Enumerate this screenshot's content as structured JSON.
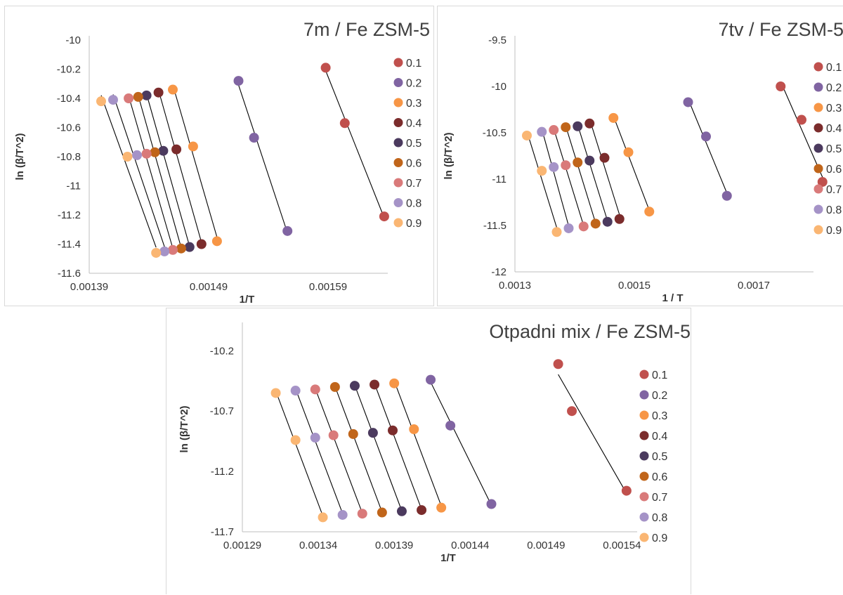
{
  "chart_data": [
    {
      "type": "scatter",
      "title": "7m / Fe ZSM-5",
      "xlabel": "1/T",
      "ylabel": "ln (β/T^2)",
      "xlim": [
        0.00139,
        0.00164
      ],
      "ylim": [
        -11.6,
        -10.0
      ],
      "xticks": [
        "0.00139",
        "0.00149",
        "0.00159"
      ],
      "yticks": [
        "-10",
        "-10.2",
        "-10.4",
        "-10.6",
        "-10.8",
        "-11",
        "-11.2",
        "-11.4",
        "-11.6"
      ],
      "grid": false,
      "legend": "right",
      "series": [
        {
          "name": "0.1",
          "color": "#c0504d",
          "x": [
            0.001588,
            0.001604,
            0.001637
          ],
          "y": [
            -10.19,
            -10.57,
            -11.21
          ]
        },
        {
          "name": "0.2",
          "color": "#8064a2",
          "x": [
            0.001515,
            0.001528,
            0.001556
          ],
          "y": [
            -10.28,
            -10.67,
            -11.31
          ]
        },
        {
          "name": "0.3",
          "color": "#f79646",
          "x": [
            0.00146,
            0.001477,
            0.001497
          ],
          "y": [
            -10.34,
            -10.73,
            -11.38
          ]
        },
        {
          "name": "0.4",
          "color": "#7b2c2c",
          "x": [
            0.001448,
            0.001463,
            0.001484
          ],
          "y": [
            -10.36,
            -10.75,
            -11.4
          ]
        },
        {
          "name": "0.5",
          "color": "#4b3a5e",
          "x": [
            0.001438,
            0.001452,
            0.001474
          ],
          "y": [
            -10.38,
            -10.76,
            -11.42
          ]
        },
        {
          "name": "0.6",
          "color": "#c0651a",
          "x": [
            0.001431,
            0.001445,
            0.001467
          ],
          "y": [
            -10.39,
            -10.77,
            -11.43
          ]
        },
        {
          "name": "0.7",
          "color": "#d97a7a",
          "x": [
            0.001423,
            0.001438,
            0.00146
          ],
          "y": [
            -10.4,
            -10.78,
            -11.44
          ]
        },
        {
          "name": "0.8",
          "color": "#a593c7",
          "x": [
            0.00141,
            0.00143,
            0.001453
          ],
          "y": [
            -10.41,
            -10.79,
            -11.45
          ]
        },
        {
          "name": "0.9",
          "color": "#fab673",
          "x": [
            0.0014,
            0.001422,
            0.001446
          ],
          "y": [
            -10.42,
            -10.8,
            -11.46
          ]
        }
      ]
    },
    {
      "type": "scatter",
      "title": "7tv / Fe ZSM-5",
      "xlabel": "1 / T",
      "ylabel": "ln (β/T^2)",
      "xlim": [
        0.0013,
        0.0018
      ],
      "ylim": [
        -12.0,
        -9.5
      ],
      "xticks": [
        "0.0013",
        "0.0015",
        "0.0017"
      ],
      "yticks": [
        "-9.5",
        "-10",
        "-10.5",
        "-11",
        "-11.5",
        "-12"
      ],
      "grid": false,
      "legend": "right",
      "series": [
        {
          "name": "0.1",
          "color": "#c0504d",
          "x": [
            0.001745,
            0.00178,
            0.001815
          ],
          "y": [
            -10.0,
            -10.36,
            -11.03
          ]
        },
        {
          "name": "0.2",
          "color": "#8064a2",
          "x": [
            0.00159,
            0.00162,
            0.001655
          ],
          "y": [
            -10.17,
            -10.54,
            -11.18
          ]
        },
        {
          "name": "0.3",
          "color": "#f79646",
          "x": [
            0.001465,
            0.00149,
            0.001525
          ],
          "y": [
            -10.34,
            -10.71,
            -11.35
          ]
        },
        {
          "name": "0.4",
          "color": "#7b2c2c",
          "x": [
            0.001425,
            0.00145,
            0.001475
          ],
          "y": [
            -10.4,
            -10.77,
            -11.43
          ]
        },
        {
          "name": "0.5",
          "color": "#4b3a5e",
          "x": [
            0.001405,
            0.001425,
            0.001455
          ],
          "y": [
            -10.43,
            -10.8,
            -11.46
          ]
        },
        {
          "name": "0.6",
          "color": "#c0651a",
          "x": [
            0.001385,
            0.001405,
            0.001435
          ],
          "y": [
            -10.44,
            -10.82,
            -11.48
          ]
        },
        {
          "name": "0.7",
          "color": "#d97a7a",
          "x": [
            0.001365,
            0.001385,
            0.001415
          ],
          "y": [
            -10.47,
            -10.85,
            -11.51
          ]
        },
        {
          "name": "0.8",
          "color": "#a593c7",
          "x": [
            0.001345,
            0.001365,
            0.00139
          ],
          "y": [
            -10.49,
            -10.87,
            -11.53
          ]
        },
        {
          "name": "0.9",
          "color": "#fab673",
          "x": [
            0.00132,
            0.001345,
            0.00137
          ],
          "y": [
            -10.53,
            -10.91,
            -11.57
          ]
        }
      ]
    },
    {
      "type": "scatter",
      "title": "Otpadni mix / Fe ZSM-5",
      "xlabel": "1/T",
      "ylabel": "ln (β/T^2)",
      "xlim": [
        0.00129,
        0.00155
      ],
      "ylim": [
        -11.7,
        -10.0
      ],
      "xticks": [
        "0.00129",
        "0.00134",
        "0.00139",
        "0.00144",
        "0.00149",
        "0.00154"
      ],
      "yticks": [
        "-10.2",
        "-10.7",
        "-11.2",
        "-11.7"
      ],
      "grid": false,
      "legend": "right",
      "series": [
        {
          "name": "0.1",
          "color": "#c0504d",
          "x": [
            0.001498,
            0.001507,
            0.001543
          ],
          "y": [
            -10.31,
            -10.7,
            -11.36
          ]
        },
        {
          "name": "0.2",
          "color": "#8064a2",
          "x": [
            0.001414,
            0.001427,
            0.001454
          ],
          "y": [
            -10.44,
            -10.82,
            -11.47
          ]
        },
        {
          "name": "0.3",
          "color": "#f79646",
          "x": [
            0.00139,
            0.001403,
            0.001421
          ],
          "y": [
            -10.47,
            -10.85,
            -11.5
          ]
        },
        {
          "name": "0.4",
          "color": "#7b2c2c",
          "x": [
            0.001377,
            0.001389,
            0.001408
          ],
          "y": [
            -10.48,
            -10.86,
            -11.52
          ]
        },
        {
          "name": "0.5",
          "color": "#4b3a5e",
          "x": [
            0.001364,
            0.001376,
            0.001395
          ],
          "y": [
            -10.49,
            -10.88,
            -11.53
          ]
        },
        {
          "name": "0.6",
          "color": "#c0651a",
          "x": [
            0.001351,
            0.001363,
            0.001382
          ],
          "y": [
            -10.5,
            -10.89,
            -11.54
          ]
        },
        {
          "name": "0.7",
          "color": "#d97a7a",
          "x": [
            0.001338,
            0.00135,
            0.001369
          ],
          "y": [
            -10.52,
            -10.9,
            -11.55
          ]
        },
        {
          "name": "0.8",
          "color": "#a593c7",
          "x": [
            0.001325,
            0.001338,
            0.001356
          ],
          "y": [
            -10.53,
            -10.92,
            -11.56
          ]
        },
        {
          "name": "0.9",
          "color": "#fab673",
          "x": [
            0.001312,
            0.001325,
            0.001343
          ],
          "y": [
            -10.55,
            -10.94,
            -11.58
          ]
        }
      ]
    }
  ]
}
